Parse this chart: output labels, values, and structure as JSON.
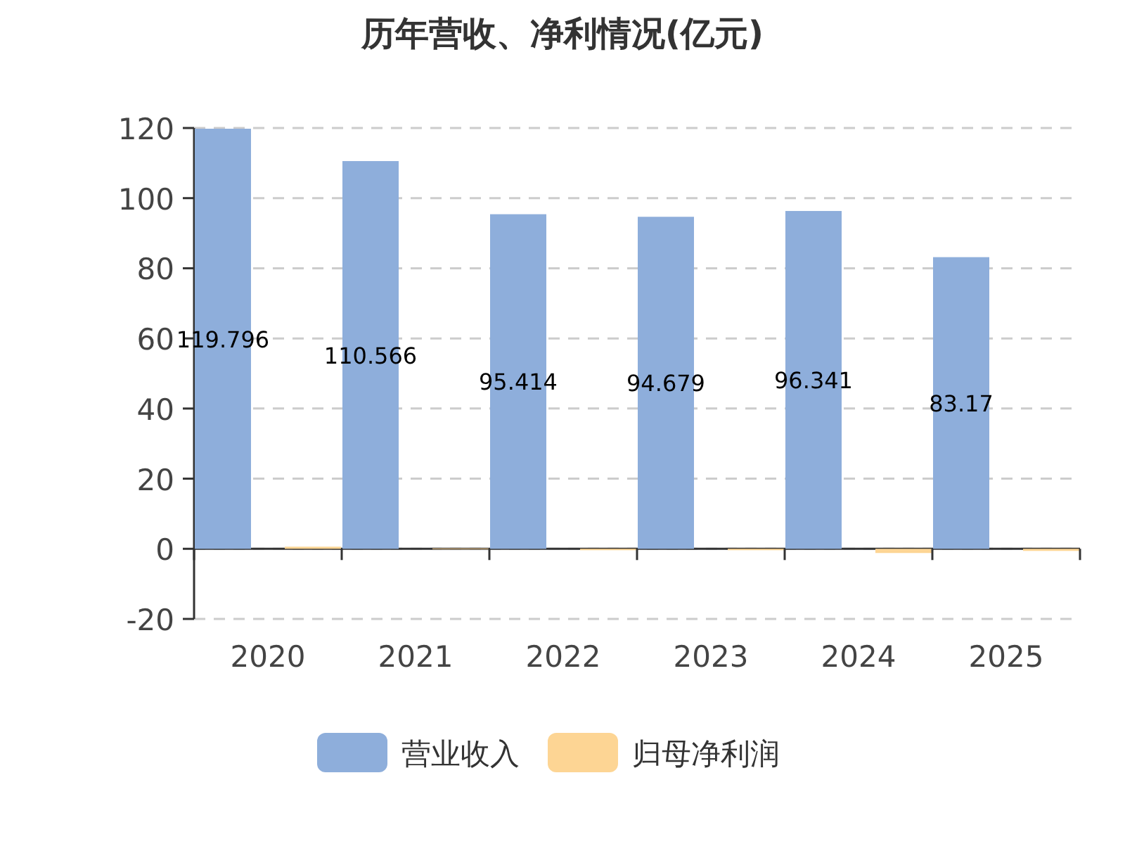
{
  "chart_data": {
    "type": "bar",
    "title": "历年营收、净利情况(亿元)",
    "categories": [
      "2020",
      "2021",
      "2022",
      "2023",
      "2024",
      "2025"
    ],
    "series": [
      {
        "name": "营业收入",
        "color": "#8eaedb",
        "values": [
          119.796,
          110.566,
          95.414,
          94.679,
          96.341,
          83.17
        ],
        "value_labels": [
          "119.796",
          "110.566",
          "95.414",
          "94.679",
          "96.341",
          "83.17"
        ]
      },
      {
        "name": "归母净利润",
        "color": "#fdd594",
        "values": [
          0.6,
          0.1,
          -0.4,
          -0.4,
          -1.2,
          -0.6
        ]
      }
    ],
    "ylim": [
      -20,
      120
    ],
    "yticks": [
      -20,
      0,
      20,
      40,
      60,
      80,
      100,
      120
    ],
    "grid": "y",
    "legend": "bottom"
  }
}
